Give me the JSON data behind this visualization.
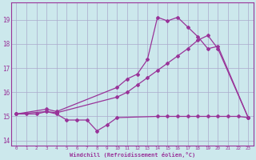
{
  "background_color": "#cce8ec",
  "grid_color": "#aaaacc",
  "line_color": "#993399",
  "xlim": [
    -0.5,
    23.5
  ],
  "ylim": [
    13.8,
    19.7
  ],
  "yticks": [
    14,
    15,
    16,
    17,
    18,
    19
  ],
  "xticks": [
    0,
    1,
    2,
    3,
    4,
    5,
    6,
    7,
    8,
    9,
    10,
    11,
    12,
    13,
    14,
    15,
    16,
    17,
    18,
    19,
    20,
    21,
    22,
    23
  ],
  "xlabel": "Windchill (Refroidissement éolien,°C)",
  "series1_x": [
    0,
    1,
    2,
    3,
    4,
    5,
    6,
    7,
    8,
    9,
    10,
    14,
    15,
    16,
    17,
    18,
    19,
    20,
    21,
    22,
    23
  ],
  "series1_y": [
    15.1,
    15.1,
    15.1,
    15.2,
    15.1,
    14.85,
    14.85,
    14.85,
    14.4,
    14.65,
    14.95,
    15.0,
    15.0,
    15.0,
    15.0,
    15.0,
    15.0,
    15.0,
    15.0,
    15.0,
    14.95
  ],
  "series2_x": [
    0,
    3,
    4,
    10,
    11,
    12,
    13,
    14,
    15,
    16,
    17,
    18,
    19,
    20,
    23
  ],
  "series2_y": [
    15.1,
    15.3,
    15.2,
    16.2,
    16.55,
    16.75,
    17.35,
    19.1,
    18.95,
    19.1,
    18.7,
    18.3,
    17.8,
    17.9,
    14.95
  ],
  "series3_x": [
    0,
    3,
    4,
    10,
    11,
    12,
    13,
    14,
    15,
    16,
    17,
    18,
    19,
    20,
    23
  ],
  "series3_y": [
    15.1,
    15.2,
    15.15,
    15.8,
    16.0,
    16.3,
    16.6,
    16.9,
    17.2,
    17.5,
    17.8,
    18.15,
    18.35,
    17.8,
    14.95
  ],
  "marker": "D",
  "markersize": 2,
  "linewidth": 0.9
}
